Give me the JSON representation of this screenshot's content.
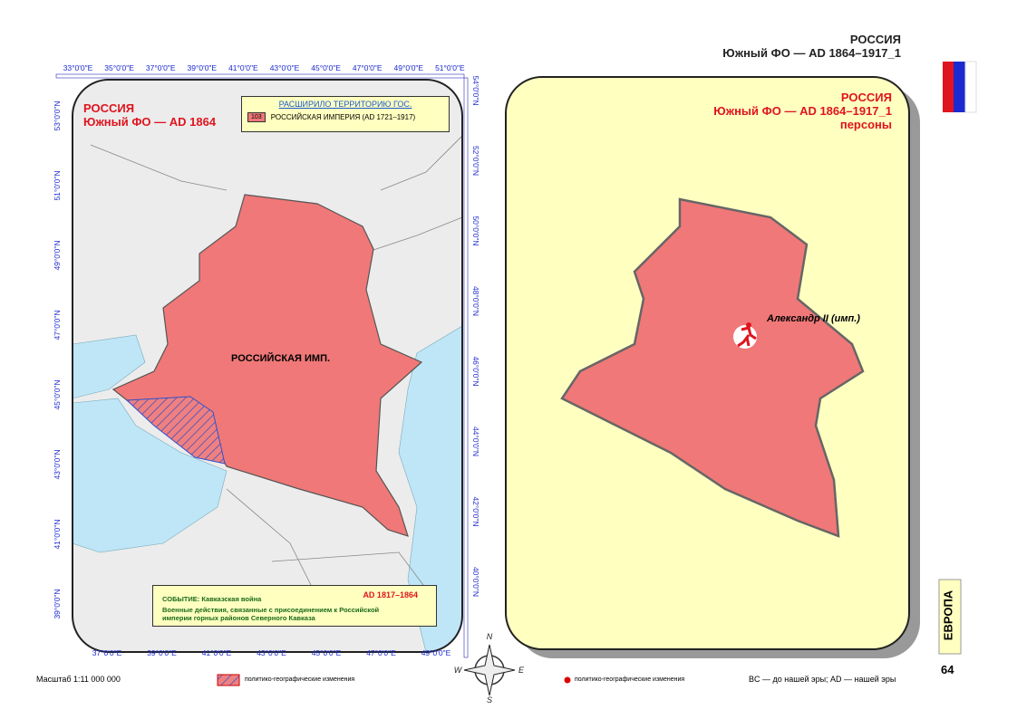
{
  "header": {
    "title": "РОССИЯ",
    "subtitle": "Южный ФО — AD 1864–1917_1"
  },
  "left_map": {
    "title": "РОССИЯ",
    "subtitle": "Южный ФО — AD 1864",
    "legend": {
      "heading": "РАСШИРИЛО ТЕРРИТОРИЮ ГОС.",
      "code": "103",
      "item": "РОССИЙСКАЯ ИМПЕРИЯ (AD 1721–1917)"
    },
    "territory_label": "РОССИЙСКАЯ ИМП.",
    "event": {
      "heading": "СОБЫТИЕ: Кавказская война",
      "period": "AD 1817–1864",
      "description": "Военные действия, связанные с присоединением к Российской империи горных районов Северного Кавказа"
    },
    "top_longitudes": [
      "33°0'0\"E",
      "35°0'0\"E",
      "37°0'0\"E",
      "39°0'0\"E",
      "41°0'0\"E",
      "43°0'0\"E",
      "45°0'0\"E",
      "47°0'0\"E",
      "49°0'0\"E",
      "51°0'0\"E"
    ],
    "bottom_longitudes": [
      "37°0'0\"E",
      "39°0'0\"E",
      "41°0'0\"E",
      "43°0'0\"E",
      "45°0'0\"E",
      "47°0'0\"E",
      "49°0'0\"E"
    ],
    "left_latitudes": [
      "53°0'0\"N",
      "51°0'0\"N",
      "49°0'0\"N",
      "47°0'0\"N",
      "45°0'0\"N",
      "43°0'0\"N",
      "41°0'0\"N",
      "39°0'0\"N"
    ],
    "right_latitudes": [
      "54°0'0\"N",
      "52°0'0\"N",
      "50°0'0\"N",
      "48°0'0\"N",
      "46°0'0\"N",
      "44°0'0\"N",
      "42°0'0\"N",
      "40°0'0\"N"
    ]
  },
  "right_map": {
    "title": "РОССИЯ",
    "subtitle": "Южный ФО — AD 1864–1917_1",
    "layer": "персоны",
    "person": "Александр II (имп.)"
  },
  "footer": {
    "scale": "Масштаб 1:11 000 000",
    "legend_hatch": "политико-географические изменения",
    "legend_dot": "политико-географические изменения",
    "era_note": "BC — до нашей эры; AD — нашей эры",
    "page_number": "64",
    "section": "ЕВРОПА"
  },
  "compass": [
    "N",
    "E",
    "S",
    "W"
  ]
}
